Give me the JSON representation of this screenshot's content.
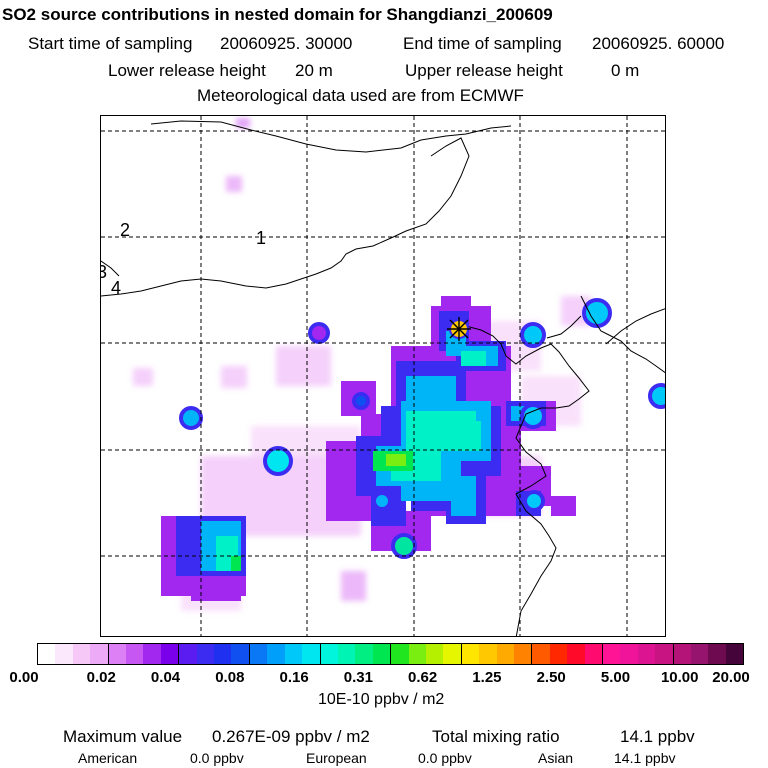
{
  "header": {
    "title": "SO2 source contributions in nested domain for Shangdianzi_200609",
    "start_label": "Start time of sampling",
    "start_value": "20060925. 30000",
    "end_label": "End time of sampling",
    "end_value": "20060925. 60000",
    "lower_label": "Lower release height",
    "lower_value": "20 m",
    "upper_label": "Upper release height",
    "upper_value": "0 m",
    "met_text": "Meteorological data used are from ECMWF"
  },
  "map": {
    "contour_labels": [
      "2",
      "1",
      "3",
      "4"
    ],
    "receptor_marker": "yellow star",
    "colors": {
      "frame": "#000000",
      "gridline": "#000000",
      "coastline": "#000000"
    }
  },
  "colorbar": {
    "tick_labels": [
      "0.00",
      "0.02",
      "0.04",
      "0.08",
      "0.16",
      "0.31",
      "0.62",
      "1.25",
      "2.50",
      "5.00",
      "10.00",
      "20.00"
    ],
    "colors": [
      "#ffffff",
      "#fce8fc",
      "#f5c8f8",
      "#ecaaf7",
      "#dd7ff5",
      "#c757f2",
      "#a228ef",
      "#7a00ec",
      "#5a1cf0",
      "#3c2cf2",
      "#2030f0",
      "#1050f0",
      "#0a78f5",
      "#00a0fa",
      "#00c8f8",
      "#00e6f0",
      "#00f5dc",
      "#00f5b4",
      "#00ee82",
      "#00e650",
      "#20e620",
      "#7aee10",
      "#b4f000",
      "#e6f500",
      "#ffe600",
      "#ffc800",
      "#ffaa00",
      "#ff8200",
      "#ff5a00",
      "#ff2800",
      "#ff0a28",
      "#ff0a6e",
      "#ff1496",
      "#f0149b",
      "#dc1491",
      "#c81482",
      "#b41478",
      "#96146e",
      "#6e0a50",
      "#46053a"
    ],
    "units": "10E-10 ppbv / m2"
  },
  "footer": {
    "max_label": "Maximum value",
    "max_value": "0.267E-09 ppbv / m2",
    "total_label": "Total mixing ratio",
    "total_value": "14.1 ppbv",
    "american_label": "American",
    "american_value": "0.0 ppbv",
    "european_label": "European",
    "european_value": "0.0 ppbv",
    "asian_label": "Asian",
    "asian_value": "14.1 ppbv"
  }
}
